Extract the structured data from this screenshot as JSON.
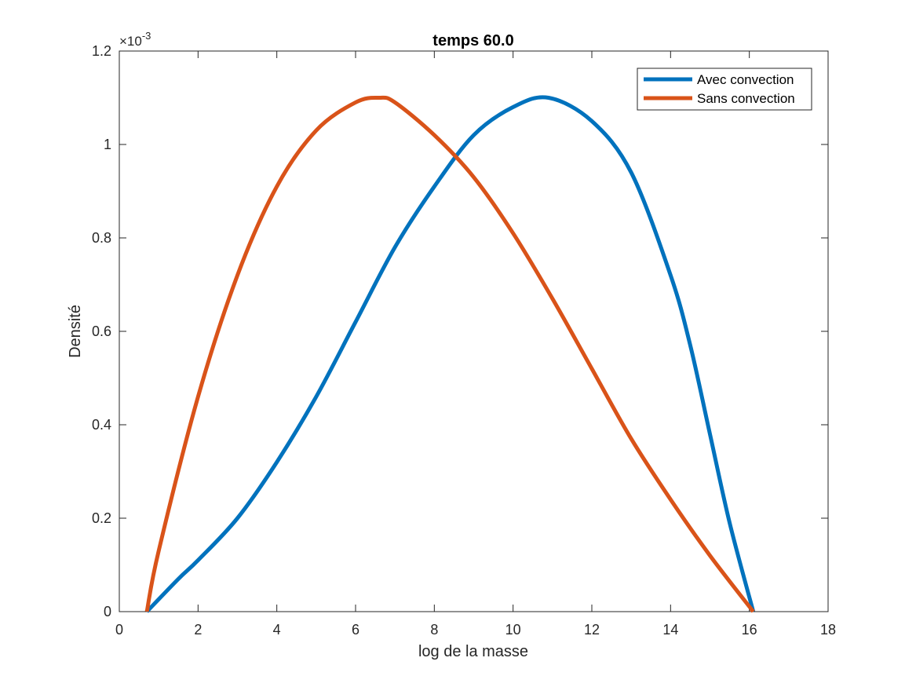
{
  "chart_data": {
    "type": "line",
    "title": "temps 60.0",
    "xlabel": "log de la masse",
    "ylabel": "Densité",
    "xlim": [
      0,
      18
    ],
    "ylim": [
      0,
      0.0012
    ],
    "xticks": [
      "0",
      "2",
      "4",
      "6",
      "8",
      "10",
      "12",
      "14",
      "16",
      "18"
    ],
    "yticks": [
      "0",
      "0.2",
      "0.4",
      "0.6",
      "0.8",
      "1",
      "1.2"
    ],
    "y_exponent_label": "×10",
    "y_exponent_power": "-3",
    "grid": false,
    "legend_position": "top-right",
    "series": [
      {
        "name": "Avec convection",
        "color": "#0072BD",
        "x": [
          0.7,
          1.5,
          2.0,
          3.0,
          4.0,
          5.0,
          6.0,
          7.0,
          8.0,
          9.0,
          10.0,
          10.9,
          12.0,
          13.0,
          14.0,
          14.5,
          15.0,
          15.5,
          16.1
        ],
        "y": [
          0.0,
          7e-05,
          0.00011,
          0.0002,
          0.00032,
          0.00046,
          0.00062,
          0.00078,
          0.00091,
          0.00102,
          0.00108,
          0.0011,
          0.00105,
          0.00094,
          0.00072,
          0.00057,
          0.00038,
          0.00019,
          0.0
        ]
      },
      {
        "name": "Sans convection",
        "color": "#D95319",
        "x": [
          0.7,
          1.0,
          2.0,
          3.0,
          4.0,
          5.0,
          6.0,
          6.6,
          7.0,
          8.0,
          9.0,
          10.0,
          11.0,
          12.0,
          13.0,
          14.0,
          15.0,
          16.1
        ],
        "y": [
          0.0,
          0.00013,
          0.00046,
          0.00072,
          0.00091,
          0.00103,
          0.00109,
          0.0011,
          0.00109,
          0.00102,
          0.00093,
          0.00081,
          0.00067,
          0.00052,
          0.00037,
          0.00024,
          0.00012,
          0.0
        ]
      }
    ]
  }
}
